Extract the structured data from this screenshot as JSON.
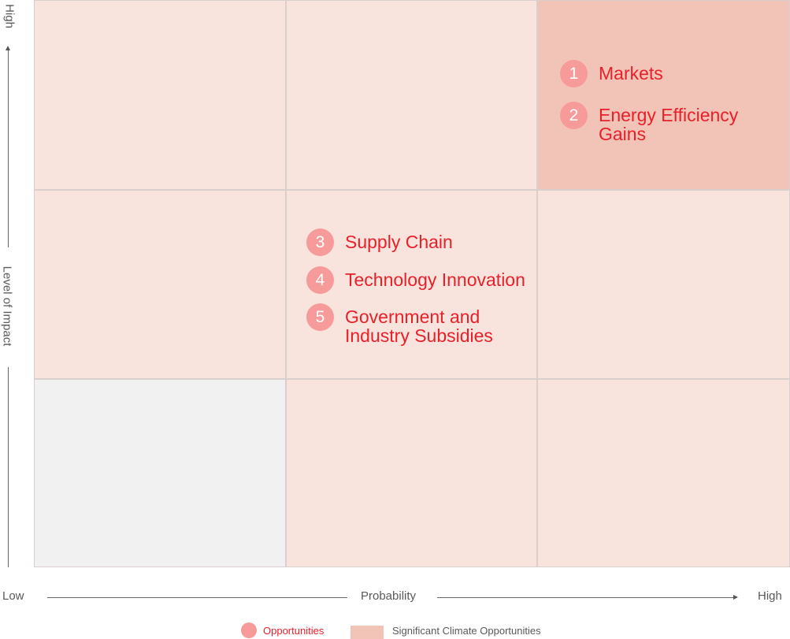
{
  "axes": {
    "y_high": "High",
    "y_label": "Level of Impact",
    "x_low": "Low",
    "x_label": "Probability",
    "x_high": "High"
  },
  "items": [
    {
      "number": "1",
      "label": "Markets"
    },
    {
      "number": "2",
      "label": "Energy Efficiency\nGains"
    },
    {
      "number": "3",
      "label": "Supply Chain"
    },
    {
      "number": "4",
      "label": "Technology Innovation"
    },
    {
      "number": "5",
      "label": "Government and\nIndustry Subsidies"
    }
  ],
  "legend": {
    "opportunities": "Opportunities",
    "significant": "Significant Climate Opportunities"
  },
  "colors": {
    "cell_light": "#f8e4dd",
    "cell_grey": "#f2f1f1",
    "cell_significant": "#f2c3b7",
    "marker": "#f79a9a",
    "accent_text": "#e8202a"
  }
}
